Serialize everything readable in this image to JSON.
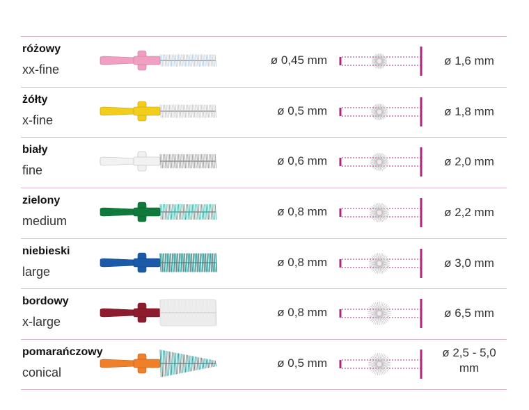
{
  "rows": [
    {
      "color_name": "różowy",
      "size_name": "xx-fine",
      "wire": "ø 0,45 mm",
      "gap": "ø 1,6 mm",
      "brush_color": "#f29fc4",
      "bristle_color": "#b7c9d9",
      "bristle_style": "thin",
      "cross_size": "xx-small",
      "bristle_length_rel": 0.35
    },
    {
      "color_name": "żółty",
      "size_name": "x-fine",
      "wire": "ø 0,5 mm",
      "gap": "ø 1,8 mm",
      "brush_color": "#f2cd1a",
      "bristle_color": "#c4c4c4",
      "bristle_style": "thin",
      "cross_size": "x-small",
      "bristle_length_rel": 0.4
    },
    {
      "color_name": "biały",
      "size_name": "fine",
      "wire": "ø 0,6 mm",
      "gap": "ø 2,0 mm",
      "brush_color": "#f2f2f2",
      "bristle_color": "#9a9a9a",
      "bristle_style": "fine",
      "cross_size": "small",
      "bristle_length_rel": 0.45
    },
    {
      "color_name": "zielony",
      "size_name": "medium",
      "wire": "ø 0,8 mm",
      "gap": "ø 2,2 mm",
      "brush_color": "#0f7a3c",
      "bristle_color": "#3aa89a",
      "bristle_style": "fine",
      "cross_size": "medium",
      "bristle_length_rel": 0.5
    },
    {
      "color_name": "niebieski",
      "size_name": "large",
      "wire": "ø 0,8 mm",
      "gap": "ø 3,0 mm",
      "brush_color": "#1a5aa8",
      "bristle_color": "#2f8c8c",
      "bristle_style": "thick",
      "cross_size": "large",
      "bristle_length_rel": 0.65
    },
    {
      "color_name": "bordowy",
      "size_name": "x-large",
      "wire": "ø 0,8 mm",
      "gap": "ø 6,5 mm",
      "brush_color": "#8c1c2e",
      "bristle_color": "#ffffff",
      "bristle_style": "fluffy",
      "cross_size": "x-large",
      "bristle_length_rel": 1.0
    },
    {
      "color_name": "pomarańczowy",
      "size_name": "conical",
      "wire": "ø 0,5 mm",
      "gap": "ø 2,5 - 5,0 mm",
      "brush_color": "#f07f2a",
      "bristle_color": "#2f8c8c",
      "bristle_style": "conical",
      "cross_size": "conical",
      "bristle_length_rel": 0.8
    }
  ],
  "accent_color": "#b0247f",
  "divider_color": "#d9b7d3"
}
